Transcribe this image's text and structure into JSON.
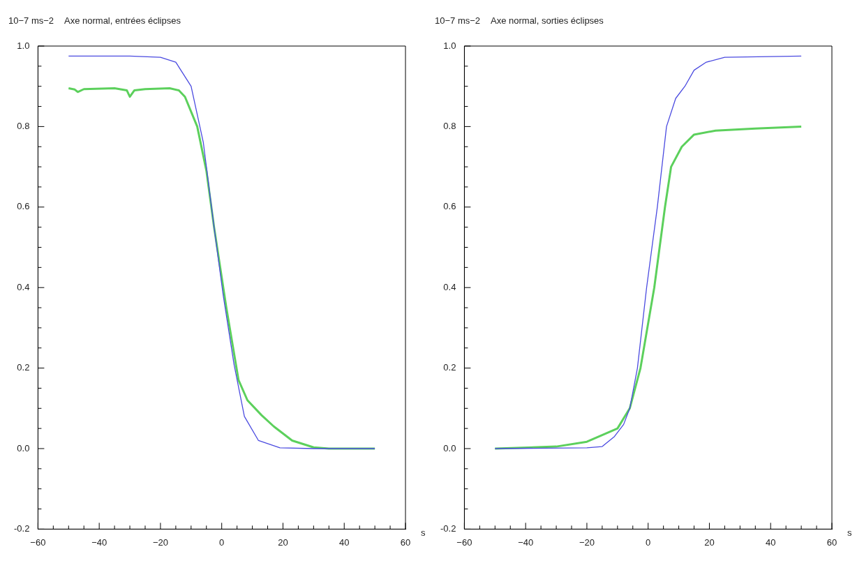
{
  "chart_data": [
    {
      "type": "line",
      "title": "Axe normal, entrées éclipses",
      "ylabel": "10−7 ms−2",
      "xlabel": "s",
      "xlim": [
        -60,
        60
      ],
      "ylim": [
        -0.2,
        1.0
      ],
      "xticks": [
        {
          "value": -60,
          "label": "−60"
        },
        {
          "value": -55,
          "label": null
        },
        {
          "value": -50,
          "label": null
        },
        {
          "value": -45,
          "label": null
        },
        {
          "value": -40,
          "label": "−40"
        },
        {
          "value": -35,
          "label": null
        },
        {
          "value": -30,
          "label": null
        },
        {
          "value": -25,
          "label": null
        },
        {
          "value": -20,
          "label": "−20"
        },
        {
          "value": -15,
          "label": null
        },
        {
          "value": -10,
          "label": null
        },
        {
          "value": -5,
          "label": null
        },
        0,
        {
          "value": 5,
          "label": null
        },
        {
          "value": 10,
          "label": null
        },
        {
          "value": 15,
          "label": null
        },
        20,
        {
          "value": 25,
          "label": null
        },
        {
          "value": 30,
          "label": null
        },
        {
          "value": 35,
          "label": null
        },
        40,
        {
          "value": 45,
          "label": null
        },
        {
          "value": 50,
          "label": null
        },
        {
          "value": 55,
          "label": null
        },
        60
      ],
      "yticks": [
        {
          "value": -0.2,
          "label": "-0.2"
        },
        {
          "value": -0.15,
          "label": null
        },
        {
          "value": -0.1,
          "label": null
        },
        {
          "value": -0.05,
          "label": null
        },
        {
          "value": 0,
          "label": "0.0"
        },
        {
          "value": 0.05,
          "label": null
        },
        {
          "value": 0.1,
          "label": null
        },
        {
          "value": 0.15,
          "label": null
        },
        0.2,
        {
          "value": 0.25,
          "label": null
        },
        {
          "value": 0.3,
          "label": null
        },
        {
          "value": 0.35,
          "label": null
        },
        0.4,
        {
          "value": 0.45,
          "label": null
        },
        {
          "value": 0.5,
          "label": null
        },
        {
          "value": 0.55,
          "label": null
        },
        0.6,
        {
          "value": 0.65,
          "label": null
        },
        {
          "value": 0.7,
          "label": null
        },
        {
          "value": 0.75,
          "label": null
        },
        0.8,
        {
          "value": 0.85,
          "label": null
        },
        {
          "value": 0.9,
          "label": null
        },
        {
          "value": 0.95,
          "label": null
        },
        {
          "value": 1.0,
          "label": "1.0"
        }
      ],
      "series": [
        {
          "color": "#4a4ae0",
          "x": [
            -50,
            -30,
            -20,
            -15,
            -10,
            -6,
            -2.5,
            0.5,
            4,
            7.4,
            12,
            19,
            30,
            50
          ],
          "values": [
            0.975,
            0.975,
            0.972,
            0.96,
            0.9,
            0.76,
            0.55,
            0.38,
            0.21,
            0.08,
            0.02,
            0.002,
            0,
            0
          ]
        },
        {
          "color": "#5cd05c",
          "x": [
            -50,
            -48,
            -47,
            -45,
            -35,
            -31,
            -30,
            -28.5,
            -25,
            -17,
            -14,
            -12,
            -8,
            -5,
            -2.5,
            1.5,
            5.5,
            8.4,
            13,
            17,
            23,
            30,
            35,
            50
          ],
          "values": [
            0.895,
            0.892,
            0.886,
            0.893,
            0.895,
            0.89,
            0.874,
            0.89,
            0.893,
            0.895,
            0.89,
            0.874,
            0.8,
            0.69,
            0.55,
            0.35,
            0.17,
            0.12,
            0.083,
            0.055,
            0.02,
            0.003,
            0,
            0
          ]
        }
      ]
    },
    {
      "type": "line",
      "title": "Axe normal, sorties éclipses",
      "ylabel": "10−7 ms−2",
      "xlabel": "s",
      "xlim": [
        -60,
        60
      ],
      "ylim": [
        -0.2,
        1.0
      ],
      "xticks": [
        {
          "value": -60,
          "label": "−60"
        },
        {
          "value": -55,
          "label": null
        },
        {
          "value": -50,
          "label": null
        },
        {
          "value": -45,
          "label": null
        },
        {
          "value": -40,
          "label": "−40"
        },
        {
          "value": -35,
          "label": null
        },
        {
          "value": -30,
          "label": null
        },
        {
          "value": -25,
          "label": null
        },
        {
          "value": -20,
          "label": "−20"
        },
        {
          "value": -15,
          "label": null
        },
        {
          "value": -10,
          "label": null
        },
        {
          "value": -5,
          "label": null
        },
        0,
        {
          "value": 5,
          "label": null
        },
        {
          "value": 10,
          "label": null
        },
        {
          "value": 15,
          "label": null
        },
        20,
        {
          "value": 25,
          "label": null
        },
        {
          "value": 30,
          "label": null
        },
        {
          "value": 35,
          "label": null
        },
        40,
        {
          "value": 45,
          "label": null
        },
        {
          "value": 50,
          "label": null
        },
        {
          "value": 55,
          "label": null
        },
        60
      ],
      "yticks": [
        {
          "value": -0.2,
          "label": "-0.2"
        },
        {
          "value": -0.15,
          "label": null
        },
        {
          "value": -0.1,
          "label": null
        },
        {
          "value": -0.05,
          "label": null
        },
        {
          "value": 0,
          "label": "0.0"
        },
        {
          "value": 0.05,
          "label": null
        },
        {
          "value": 0.1,
          "label": null
        },
        {
          "value": 0.15,
          "label": null
        },
        0.2,
        {
          "value": 0.25,
          "label": null
        },
        {
          "value": 0.3,
          "label": null
        },
        {
          "value": 0.35,
          "label": null
        },
        0.4,
        {
          "value": 0.45,
          "label": null
        },
        {
          "value": 0.5,
          "label": null
        },
        {
          "value": 0.55,
          "label": null
        },
        0.6,
        {
          "value": 0.65,
          "label": null
        },
        {
          "value": 0.7,
          "label": null
        },
        {
          "value": 0.75,
          "label": null
        },
        0.8,
        {
          "value": 0.85,
          "label": null
        },
        {
          "value": 0.9,
          "label": null
        },
        {
          "value": 0.95,
          "label": null
        },
        {
          "value": 1.0,
          "label": "1.0"
        }
      ],
      "series": [
        {
          "color": "#4a4ae0",
          "x": [
            -50,
            -20,
            -15,
            -11,
            -8,
            -6,
            -3.5,
            -0.5,
            3,
            6,
            9,
            12,
            15,
            19,
            25,
            50
          ],
          "values": [
            0,
            0.002,
            0.005,
            0.03,
            0.06,
            0.1,
            0.2,
            0.4,
            0.6,
            0.8,
            0.87,
            0.9,
            0.94,
            0.96,
            0.972,
            0.975
          ]
        },
        {
          "color": "#5cd05c",
          "x": [
            -50,
            -30,
            -20,
            -10,
            -6,
            -2.5,
            2,
            5.5,
            7.5,
            11,
            15,
            22,
            35,
            50
          ],
          "values": [
            0,
            0.005,
            0.017,
            0.05,
            0.1,
            0.2,
            0.4,
            0.6,
            0.7,
            0.75,
            0.78,
            0.79,
            0.795,
            0.8
          ]
        }
      ]
    }
  ]
}
